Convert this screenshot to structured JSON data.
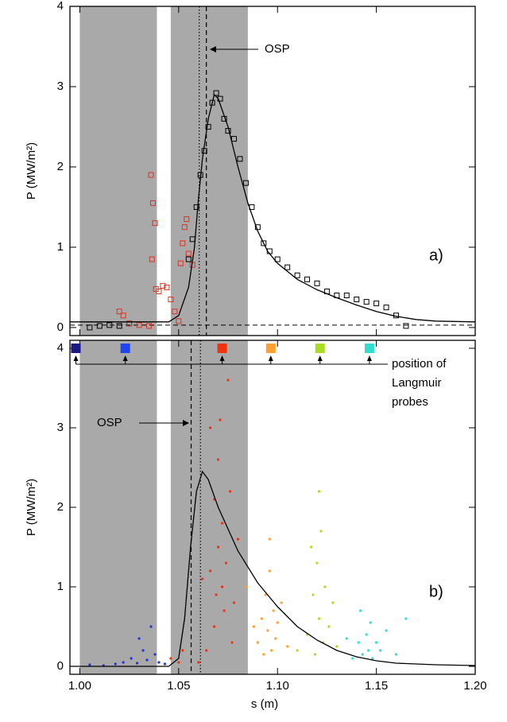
{
  "chart_data": [
    {
      "type": "scatter",
      "panel_label": "a)",
      "ylabel": "P (MW/m²)",
      "xlim": [
        0.995,
        1.2
      ],
      "xticks": [
        1.0,
        1.05,
        1.1,
        1.15,
        1.2
      ],
      "ylim": [
        -0.1,
        4.0
      ],
      "yticks": [
        0,
        1,
        2,
        3,
        4
      ],
      "shaded": [
        [
          1.0,
          1.039
        ],
        [
          1.046,
          1.085
        ]
      ],
      "vlines": [
        {
          "x": 1.0604,
          "style": "dotted"
        },
        {
          "x": 1.064,
          "style": "dashed"
        }
      ],
      "hlines": [
        {
          "y": 0.03,
          "style": "dashed"
        }
      ],
      "annotation": "OSP",
      "series": [
        {
          "mode": "markers",
          "marker": "square",
          "color": "#000000",
          "x": [
            1.005,
            1.01,
            1.015,
            1.02,
            1.025,
            1.055,
            1.057,
            1.059,
            1.061,
            1.063,
            1.065,
            1.067,
            1.069,
            1.071,
            1.073,
            1.075,
            1.078,
            1.081,
            1.084,
            1.087,
            1.09,
            1.093,
            1.096,
            1.1,
            1.105,
            1.11,
            1.115,
            1.12,
            1.125,
            1.13,
            1.135,
            1.14,
            1.145,
            1.15,
            1.155,
            1.16,
            1.165
          ],
          "values": [
            0.0,
            0.02,
            0.03,
            0.02,
            0.05,
            0.85,
            1.1,
            1.5,
            1.9,
            2.2,
            2.5,
            2.8,
            2.92,
            2.85,
            2.6,
            2.45,
            2.35,
            2.1,
            1.8,
            1.5,
            1.25,
            1.05,
            0.95,
            0.85,
            0.75,
            0.65,
            0.6,
            0.55,
            0.45,
            0.4,
            0.4,
            0.35,
            0.32,
            0.3,
            0.25,
            0.15,
            0.02
          ]
        },
        {
          "mode": "markers",
          "marker": "square",
          "color": "#dd3322",
          "x": [
            1.02,
            1.022,
            1.025,
            1.03,
            1.035,
            1.036,
            1.037,
            1.038,
            1.0365,
            1.0385,
            1.04,
            1.042,
            1.044,
            1.046,
            1.048,
            1.05,
            1.051,
            1.052,
            1.053,
            1.054,
            1.055,
            1.057
          ],
          "values": [
            0.2,
            0.15,
            0.05,
            0.03,
            0.02,
            1.9,
            1.55,
            1.3,
            0.85,
            0.48,
            0.45,
            0.52,
            0.5,
            0.35,
            0.2,
            0.08,
            0.8,
            1.05,
            1.25,
            1.35,
            0.92,
            0.78
          ]
        },
        {
          "mode": "line",
          "color": "#000000",
          "x": [
            0.995,
            1.045,
            1.05,
            1.055,
            1.058,
            1.06,
            1.062,
            1.065,
            1.068,
            1.07,
            1.075,
            1.08,
            1.085,
            1.09,
            1.095,
            1.1,
            1.11,
            1.12,
            1.13,
            1.14,
            1.15,
            1.16,
            1.17,
            1.18,
            1.2
          ],
          "values": [
            0.07,
            0.07,
            0.15,
            0.5,
            1.0,
            1.6,
            2.1,
            2.6,
            2.9,
            2.85,
            2.5,
            2.0,
            1.55,
            1.2,
            0.95,
            0.8,
            0.6,
            0.47,
            0.37,
            0.28,
            0.2,
            0.14,
            0.1,
            0.08,
            0.07
          ]
        }
      ]
    },
    {
      "type": "scatter",
      "panel_label": "b)",
      "ylabel": "P (MW/m²)",
      "xlabel": "s (m)",
      "xlim": [
        0.995,
        1.2
      ],
      "xticks": [
        {
          "value": 1.0,
          "label": "1.00"
        },
        {
          "value": 1.05,
          "label": "1.05"
        },
        {
          "value": 1.1,
          "label": "1.10"
        },
        {
          "value": 1.15,
          "label": "1.15"
        },
        {
          "value": 1.2,
          "label": "1.20"
        }
      ],
      "ylim": [
        -0.1,
        4.1
      ],
      "yticks": [
        0,
        1,
        2,
        3,
        4
      ],
      "shaded": [
        [
          1.0,
          1.039
        ],
        [
          1.046,
          1.085
        ]
      ],
      "vlines": [
        {
          "x": 1.0563,
          "style": "dashed"
        },
        {
          "x": 1.061,
          "style": "dotted"
        }
      ],
      "annotation": "OSP",
      "probes": {
        "label": [
          "position of",
          "Langmuir",
          "probes"
        ],
        "x": [
          0.998,
          1.023,
          1.072,
          1.0966,
          1.1215,
          1.1465
        ],
        "colors": [
          "#1a1a80",
          "#2244ee",
          "#ee3311",
          "#ffa030",
          "#aadd22",
          "#33ddcc"
        ]
      },
      "series": [
        {
          "mode": "markers",
          "marker": "dot",
          "color": "#2233dd",
          "x": [
            1.005,
            1.012,
            1.018,
            1.022,
            1.026,
            1.029,
            1.032,
            1.034,
            1.036,
            1.038,
            1.04,
            1.043,
            1.03
          ],
          "values": [
            0.02,
            0.01,
            0.03,
            0.05,
            0.1,
            0.04,
            0.2,
            0.08,
            0.5,
            0.15,
            0.05,
            0.03,
            0.35
          ]
        },
        {
          "mode": "markers",
          "marker": "dot",
          "color": "#ee3311",
          "x": [
            1.046,
            1.05,
            1.052,
            1.066,
            1.068,
            1.069,
            1.07,
            1.071,
            1.072,
            1.073,
            1.07,
            1.074,
            1.075,
            1.068,
            1.072,
            1.076,
            1.078,
            1.066,
            1.08,
            1.064,
            1.06,
            1.062,
            1.077
          ],
          "values": [
            0.1,
            0.05,
            0.2,
            1.2,
            2.1,
            0.9,
            1.5,
            3.1,
            1.8,
            0.7,
            2.6,
            1.3,
            3.6,
            0.5,
            1.0,
            2.2,
            0.8,
            3.0,
            1.6,
            0.2,
            0.05,
            1.1,
            0.3
          ]
        },
        {
          "mode": "markers",
          "marker": "dot",
          "color": "#ffa030",
          "x": [
            1.09,
            1.092,
            1.094,
            1.095,
            1.096,
            1.097,
            1.098,
            1.099,
            1.1,
            1.093,
            1.102,
            1.088,
            1.084,
            1.105,
            1.096
          ],
          "values": [
            0.3,
            0.6,
            0.9,
            0.45,
            1.2,
            0.2,
            0.7,
            0.35,
            0.55,
            0.15,
            0.8,
            0.5,
            1.0,
            0.25,
            1.6
          ]
        },
        {
          "mode": "markers",
          "marker": "dot",
          "color": "#aadd22",
          "x": [
            1.115,
            1.118,
            1.12,
            1.121,
            1.122,
            1.123,
            1.124,
            1.119,
            1.126,
            1.11,
            1.128,
            1.121,
            1.13,
            1.117
          ],
          "values": [
            0.4,
            0.9,
            1.3,
            0.6,
            1.7,
            0.3,
            1.0,
            0.15,
            0.5,
            0.2,
            0.8,
            2.2,
            0.25,
            1.5
          ]
        },
        {
          "mode": "markers",
          "marker": "dot",
          "color": "#33ddcc",
          "x": [
            1.138,
            1.141,
            1.143,
            1.145,
            1.146,
            1.147,
            1.148,
            1.15,
            1.152,
            1.155,
            1.135,
            1.16,
            1.165,
            1.142
          ],
          "values": [
            0.1,
            0.3,
            0.15,
            0.4,
            0.2,
            0.55,
            0.1,
            0.3,
            0.2,
            0.45,
            0.35,
            0.15,
            0.6,
            0.7
          ]
        },
        {
          "mode": "line",
          "color": "#000000",
          "x": [
            0.995,
            1.045,
            1.05,
            1.053,
            1.056,
            1.059,
            1.062,
            1.065,
            1.07,
            1.08,
            1.09,
            1.1,
            1.11,
            1.12,
            1.13,
            1.14,
            1.15,
            1.16,
            1.18,
            1.2
          ],
          "values": [
            0,
            0,
            0.1,
            0.6,
            1.5,
            2.2,
            2.45,
            2.35,
            2.0,
            1.45,
            1.05,
            0.75,
            0.5,
            0.33,
            0.2,
            0.12,
            0.07,
            0.04,
            0.02,
            0.01
          ]
        }
      ]
    }
  ]
}
